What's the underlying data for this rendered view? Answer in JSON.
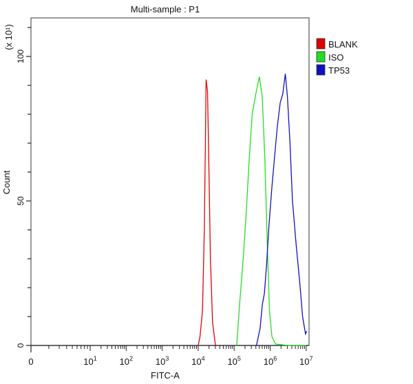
{
  "chart_data": {
    "type": "line",
    "title": "Multi-sample : P1",
    "xlabel": "FITC-A",
    "ylabel": "Count",
    "y_multiplier_label": "(x 10^1)",
    "x_scale": "log",
    "x_tick_labels": [
      "0",
      "10^1",
      "10^2",
      "10^3",
      "10^4",
      "10^5",
      "10^6",
      "10^7"
    ],
    "y_tick_labels": [
      "0",
      "50",
      "100"
    ],
    "ylim": [
      0,
      113
    ],
    "grid": false,
    "legend_position": "right",
    "series": [
      {
        "name": "BLANK",
        "color": "#e00000",
        "points": [
          [
            4.0,
            0
          ],
          [
            4.05,
            3
          ],
          [
            4.12,
            12
          ],
          [
            4.17,
            40
          ],
          [
            4.2,
            70
          ],
          [
            4.22,
            92
          ],
          [
            4.26,
            88
          ],
          [
            4.3,
            60
          ],
          [
            4.34,
            30
          ],
          [
            4.4,
            8
          ],
          [
            4.48,
            0
          ]
        ]
      },
      {
        "name": "ISO",
        "color": "#22dd22",
        "points": [
          [
            5.07,
            0
          ],
          [
            5.15,
            14
          ],
          [
            5.25,
            30
          ],
          [
            5.33,
            45
          ],
          [
            5.42,
            65
          ],
          [
            5.5,
            80
          ],
          [
            5.6,
            87
          ],
          [
            5.7,
            93
          ],
          [
            5.78,
            86
          ],
          [
            5.85,
            65
          ],
          [
            5.92,
            35
          ],
          [
            5.98,
            12
          ],
          [
            6.05,
            3
          ],
          [
            6.15,
            0.5
          ],
          [
            6.5,
            0
          ],
          [
            7.0,
            0
          ]
        ]
      },
      {
        "name": "TP53",
        "color": "#1010c0",
        "points": [
          [
            5.62,
            0
          ],
          [
            5.72,
            6
          ],
          [
            5.78,
            14
          ],
          [
            5.84,
            18
          ],
          [
            5.9,
            28
          ],
          [
            5.97,
            42
          ],
          [
            6.05,
            55
          ],
          [
            6.12,
            65
          ],
          [
            6.2,
            76
          ],
          [
            6.28,
            84
          ],
          [
            6.35,
            87
          ],
          [
            6.42,
            94
          ],
          [
            6.48,
            86
          ],
          [
            6.55,
            70
          ],
          [
            6.62,
            50
          ],
          [
            6.72,
            35
          ],
          [
            6.82,
            22
          ],
          [
            6.9,
            10
          ],
          [
            6.98,
            4
          ],
          [
            7.02,
            5
          ]
        ]
      }
    ]
  },
  "legend": [
    {
      "label": "BLANK",
      "color": "#e00000"
    },
    {
      "label": "ISO",
      "color": "#22dd22"
    },
    {
      "label": "TP53",
      "color": "#1010c0"
    }
  ]
}
